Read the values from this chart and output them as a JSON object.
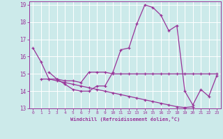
{
  "xlabel": "Windchill (Refroidissement éolien,°C)",
  "xlim": [
    -0.5,
    23.5
  ],
  "ylim": [
    13,
    19.2
  ],
  "yticks": [
    13,
    14,
    15,
    16,
    17,
    18,
    19
  ],
  "xticks": [
    0,
    1,
    2,
    3,
    4,
    5,
    6,
    7,
    8,
    9,
    10,
    11,
    12,
    13,
    14,
    15,
    16,
    17,
    18,
    19,
    20,
    21,
    22,
    23
  ],
  "bg_color": "#cceaea",
  "line_color": "#993399",
  "grid_color": "#ffffff",
  "line1_x": [
    0,
    1,
    2,
    3,
    4,
    5,
    6,
    7,
    8,
    9,
    10,
    11,
    12,
    13,
    14,
    15,
    16,
    17,
    18,
    19,
    20,
    21,
    22,
    23
  ],
  "line1_y": [
    16.5,
    15.7,
    14.7,
    14.7,
    14.4,
    14.1,
    14.0,
    14.0,
    14.3,
    14.3,
    15.1,
    16.4,
    16.5,
    17.9,
    19.0,
    18.85,
    18.4,
    17.5,
    17.8,
    14.0,
    13.2,
    14.1,
    13.7,
    14.9
  ],
  "line2_x": [
    1,
    2,
    3,
    4,
    5,
    6,
    7,
    8,
    9,
    10,
    11,
    12,
    13,
    14,
    15,
    16,
    17,
    18,
    19,
    20
  ],
  "line2_y": [
    14.7,
    14.7,
    14.6,
    14.5,
    14.4,
    14.3,
    14.2,
    14.1,
    14.0,
    13.9,
    13.8,
    13.7,
    13.6,
    13.5,
    13.4,
    13.3,
    13.2,
    13.1,
    13.05,
    13.1
  ],
  "line3_x": [
    2,
    3,
    4,
    5,
    6,
    7,
    8,
    9,
    10,
    11,
    12,
    13,
    14,
    15,
    16,
    17,
    18,
    19,
    20,
    21,
    22,
    23
  ],
  "line3_y": [
    15.1,
    14.7,
    14.6,
    14.6,
    14.5,
    15.1,
    15.1,
    15.1,
    15.0,
    15.0,
    15.0,
    15.0,
    15.0,
    15.0,
    15.0,
    15.0,
    15.0,
    15.0,
    15.0,
    15.0,
    15.0,
    15.0
  ]
}
